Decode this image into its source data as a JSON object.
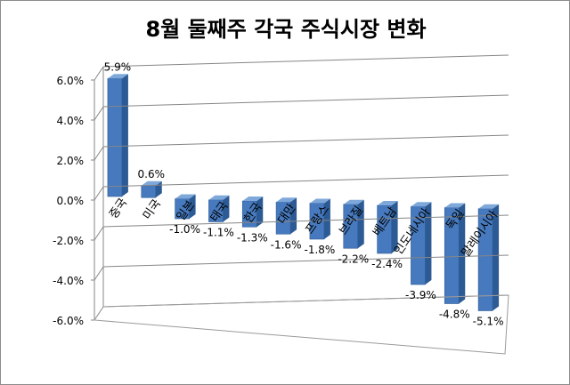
{
  "chart_data": {
    "type": "bar",
    "title": "8월 둘째주 각국 주식시장 변화",
    "categories": [
      "중국",
      "미국",
      "일본",
      "태국",
      "한국",
      "대만",
      "프랑스",
      "브라질",
      "베트남",
      "인도네시아",
      "독일",
      "말레이시아"
    ],
    "series": [
      {
        "values": [
          5.9,
          0.6,
          -1.0,
          -1.1,
          -1.3,
          -1.6,
          -1.8,
          -2.2,
          -2.4,
          -3.9,
          -4.8,
          -5.1
        ]
      }
    ],
    "data_labels": [
      "5.9%",
      "0.6%",
      "-1.0%",
      "-1.1%",
      "-1.3%",
      "-1.6%",
      "-1.8%",
      "-2.2%",
      "-2.4%",
      "-3.9%",
      "-4.8%",
      "-5.1%"
    ],
    "yticks": [
      6,
      4,
      2,
      0,
      -2,
      -4,
      -6
    ],
    "ytick_labels": [
      "6.0%",
      "4.0%",
      "2.0%",
      "0.0%",
      "-2.0%",
      "-4.0%",
      "-6.0%"
    ],
    "ylim": [
      -6,
      6
    ],
    "xlabel": "",
    "ylabel": "",
    "grid": true,
    "legend": "none",
    "style": "3d-clustered-column",
    "bar_color": "#4f81bd"
  }
}
